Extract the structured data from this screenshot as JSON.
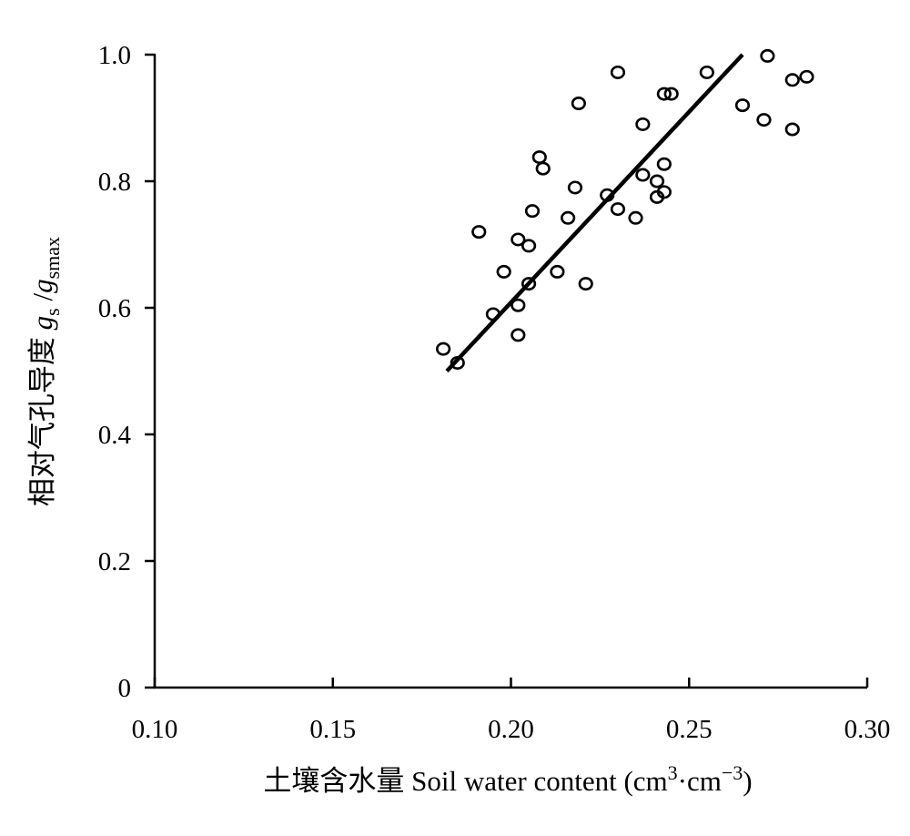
{
  "chart_data": {
    "type": "scatter",
    "x_ticks": [
      "0.10",
      "0.15",
      "0.20",
      "0.25",
      "0.30"
    ],
    "y_ticks": [
      "0",
      "0.2",
      "0.4",
      "0.6",
      "0.8",
      "1.0"
    ],
    "xlim": [
      0.1,
      0.3
    ],
    "ylim": [
      0,
      1.0
    ],
    "xlabel": {
      "cn": "土壤含水量",
      "en": "Soil water content",
      "unit_open": "(cm",
      "unit_sup1": "3",
      "unit_mid": "·cm",
      "unit_sup2": "−3",
      "unit_close": ")"
    },
    "ylabel": {
      "cn": "相对气孔导度",
      "g1": "g",
      "sub1": "s",
      "slash": " /",
      "g2": "g",
      "sub2": "smax"
    },
    "series": [
      {
        "points": [
          [
            0.181,
            0.535
          ],
          [
            0.185,
            0.513
          ],
          [
            0.191,
            0.72
          ],
          [
            0.195,
            0.59
          ],
          [
            0.198,
            0.657
          ],
          [
            0.202,
            0.708
          ],
          [
            0.202,
            0.604
          ],
          [
            0.202,
            0.557
          ],
          [
            0.205,
            0.698
          ],
          [
            0.205,
            0.638
          ],
          [
            0.206,
            0.753
          ],
          [
            0.208,
            0.838
          ],
          [
            0.209,
            0.82
          ],
          [
            0.213,
            0.657
          ],
          [
            0.216,
            0.742
          ],
          [
            0.218,
            0.79
          ],
          [
            0.219,
            0.923
          ],
          [
            0.221,
            0.638
          ],
          [
            0.227,
            0.778
          ],
          [
            0.23,
            0.972
          ],
          [
            0.23,
            0.756
          ],
          [
            0.235,
            0.742
          ],
          [
            0.237,
            0.89
          ],
          [
            0.237,
            0.81
          ],
          [
            0.241,
            0.8
          ],
          [
            0.241,
            0.775
          ],
          [
            0.243,
            0.938
          ],
          [
            0.243,
            0.827
          ],
          [
            0.243,
            0.783
          ],
          [
            0.245,
            0.938
          ],
          [
            0.255,
            0.972
          ],
          [
            0.265,
            0.92
          ],
          [
            0.271,
            0.897
          ],
          [
            0.272,
            0.998
          ],
          [
            0.279,
            0.96
          ],
          [
            0.279,
            0.882
          ],
          [
            0.283,
            0.965
          ]
        ]
      }
    ],
    "fit_line": {
      "x": [
        0.182,
        0.265
      ],
      "y": [
        0.5,
        1.0
      ]
    },
    "grid": false,
    "legend": "none"
  }
}
